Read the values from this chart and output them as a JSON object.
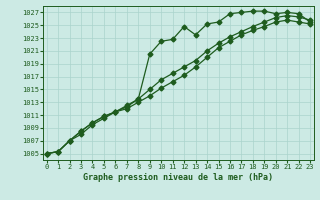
{
  "title": "Graphe pression niveau de la mer (hPa)",
  "x_values": [
    0,
    1,
    2,
    3,
    4,
    5,
    6,
    7,
    8,
    9,
    10,
    11,
    12,
    13,
    14,
    15,
    16,
    17,
    18,
    19,
    20,
    21,
    22,
    23
  ],
  "line1": [
    1005.0,
    1005.3,
    1007.0,
    1008.0,
    1009.5,
    1010.5,
    1011.5,
    1012.5,
    1013.5,
    1020.5,
    1022.5,
    1022.8,
    1024.8,
    1023.5,
    1025.2,
    1025.5,
    1026.8,
    1027.0,
    1027.2,
    1027.2,
    1026.8,
    1027.0,
    1026.8,
    1025.5
  ],
  "line2": [
    1005.0,
    1005.3,
    1007.0,
    1008.5,
    1009.8,
    1010.8,
    1011.5,
    1012.3,
    1013.5,
    1015.0,
    1016.5,
    1017.5,
    1018.5,
    1019.5,
    1021.0,
    1022.2,
    1023.2,
    1024.0,
    1024.8,
    1025.5,
    1026.2,
    1026.5,
    1026.3,
    1025.8
  ],
  "line3": [
    1005.0,
    1005.3,
    1007.0,
    1008.5,
    1009.8,
    1010.8,
    1011.5,
    1012.0,
    1013.0,
    1014.0,
    1015.2,
    1016.2,
    1017.2,
    1018.5,
    1020.0,
    1021.5,
    1022.5,
    1023.5,
    1024.2,
    1024.8,
    1025.5,
    1025.8,
    1025.5,
    1025.2
  ],
  "line_color": "#1e5c1e",
  "bg_color": "#cceae4",
  "grid_color": "#aad4cc",
  "ylim": [
    1004.0,
    1028.0
  ],
  "xlim": [
    -0.3,
    23.3
  ],
  "yticks": [
    1005,
    1007,
    1009,
    1011,
    1013,
    1015,
    1017,
    1019,
    1021,
    1023,
    1025,
    1027
  ],
  "xticks": [
    0,
    1,
    2,
    3,
    4,
    5,
    6,
    7,
    8,
    9,
    10,
    11,
    12,
    13,
    14,
    15,
    16,
    17,
    18,
    19,
    20,
    21,
    22,
    23
  ],
  "marker": "D",
  "markersize": 2.5,
  "linewidth": 0.9,
  "tick_fontsize": 5.0,
  "xlabel_fontsize": 6.0
}
